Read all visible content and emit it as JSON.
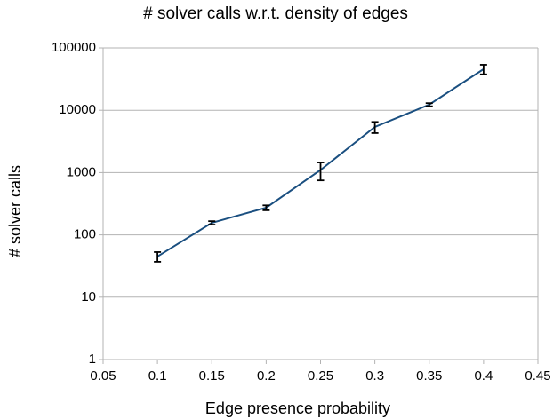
{
  "chart_data": {
    "type": "line",
    "title": "# solver calls w.r.t. density of edges",
    "xlabel": "Edge presence probability",
    "ylabel": "# solver calls",
    "x": [
      0.1,
      0.15,
      0.2,
      0.25,
      0.3,
      0.35,
      0.4
    ],
    "series": [
      {
        "name": "# solver calls",
        "color": "#1a4f80",
        "values": [
          45,
          156,
          273,
          1100,
          5400,
          12300,
          45700
        ],
        "errors": [
          8,
          10,
          25,
          350,
          1100,
          700,
          8000
        ]
      }
    ],
    "xlim": [
      0.05,
      0.45
    ],
    "xticks": [
      0.05,
      0.1,
      0.15,
      0.2,
      0.25,
      0.3,
      0.35,
      0.4,
      0.45
    ],
    "ylim": [
      1,
      100000
    ],
    "yticks": [
      1,
      10,
      100,
      1000,
      10000,
      100000
    ],
    "yscale": "log",
    "grid": true
  }
}
